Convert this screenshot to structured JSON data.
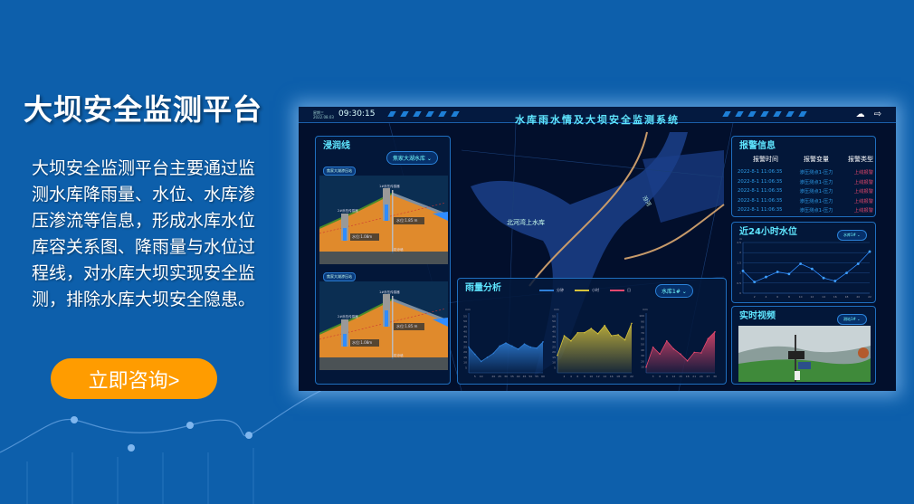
{
  "page": {
    "title": "大坝安全监测平台",
    "description": "大坝安全监测平台主要通过监测水库降雨量、水位、水库渗压渗流等信息，形成水库水位库容关系图、降雨量与水位过程线，对水库大坝实现安全监测，排除水库大坝安全隐患。",
    "cta_label": "立即咨询>",
    "cta_color": "#ff9c00",
    "background_color": "#0d5fab"
  },
  "dashboard": {
    "header": {
      "weekday": "星期三",
      "date": "2022.08.03",
      "time": "09:30:15",
      "system_title": "水库雨水情及大坝安全监测系统",
      "icons": [
        "weather-cloud-icon",
        "logout-icon"
      ]
    },
    "seepage": {
      "title": "浸润线",
      "reservoir_select": "焦家大湖水库",
      "sections": [
        {
          "tag": "焦家大湖渗压站",
          "sensor1": "1#渗压传感器",
          "sensor2": "2#渗压传感器",
          "level1": "水位:1.85 m",
          "level2": "水位:1.08m",
          "wall": "防渗墙"
        },
        {
          "tag": "焦家大湖渗压站",
          "sensor1": "1#渗压传感器",
          "sensor2": "2#渗压传感器",
          "level1": "水位:1.85 m",
          "level2": "水位:1.08m",
          "wall": "防渗墙"
        }
      ]
    },
    "map": {
      "reservoir_label": "北河湾上水库",
      "river_label": "汾河"
    },
    "alarm": {
      "title": "报警信息",
      "columns": [
        "报警时间",
        "报警变量",
        "报警类型"
      ],
      "rows": [
        [
          "2022-8-1 11:06:35",
          "渗压测点1-压力",
          "上线报警"
        ],
        [
          "2022-8-1 11:06:35",
          "渗压测点1-压力",
          "上线报警"
        ],
        [
          "2022-8-1 11:06:35",
          "渗压测点1-压力",
          "上线报警"
        ],
        [
          "2022-8-1 11:06:35",
          "渗压测点1-压力",
          "上线报警"
        ],
        [
          "2022-8-1 11:06:35",
          "渗压测点1-压力",
          "上线报警"
        ]
      ]
    },
    "water_level": {
      "title": "近24小时水位",
      "select": "水库1#"
    },
    "video": {
      "title": "实时视频",
      "select": "测站1#"
    },
    "rain": {
      "title": "雨量分析",
      "select": "水库1#",
      "legend": [
        "分钟",
        "小时",
        "日"
      ]
    }
  },
  "chart_data": [
    {
      "type": "line",
      "id": "water-level",
      "unit": "m",
      "x": [
        0,
        2,
        4,
        6,
        8,
        10,
        12,
        14,
        16,
        18,
        20,
        22
      ],
      "values": [
        1.1,
        0.55,
        0.8,
        1.05,
        0.95,
        1.45,
        1.2,
        0.75,
        0.6,
        1.0,
        1.45,
        2.05
      ],
      "xticks": [
        2,
        4,
        6,
        8,
        10,
        12,
        14,
        16,
        18,
        20,
        22
      ],
      "yticks": [
        0,
        0.5,
        1.0,
        1.5,
        2.0,
        2.5
      ],
      "ylim": [
        0,
        2.5
      ],
      "color": "#2f8cff",
      "grid": true
    },
    {
      "type": "area",
      "id": "rain-minute",
      "name": "分钟",
      "unit": "mm",
      "x": [
        0,
        5,
        10,
        15,
        20,
        25,
        30,
        35,
        40,
        45,
        50,
        55,
        60
      ],
      "values": [
        25,
        18,
        11,
        15,
        19,
        26,
        29,
        26,
        23,
        28,
        25,
        24,
        30
      ],
      "xticks": [
        5,
        10,
        20,
        25,
        30,
        35,
        40,
        45,
        50,
        55,
        60
      ],
      "yticks": [
        5,
        10,
        15,
        20,
        25,
        30,
        35,
        40,
        45,
        50,
        55
      ],
      "ylim": [
        0,
        58
      ],
      "xlim": [
        0,
        60
      ],
      "color": "#2f7fd8"
    },
    {
      "type": "area",
      "id": "rain-hour",
      "name": "小时",
      "unit": "mm",
      "x": [
        0,
        2,
        4,
        6,
        8,
        10,
        12,
        14,
        16,
        18,
        20,
        22
      ],
      "values": [
        17,
        36,
        31,
        39,
        39,
        43,
        38,
        46,
        36,
        37,
        32,
        48
      ],
      "xticks": [
        2,
        4,
        6,
        8,
        10,
        12,
        14,
        16,
        18,
        20,
        22
      ],
      "yticks": [
        5,
        10,
        15,
        20,
        25,
        30,
        35,
        40,
        45,
        50,
        55
      ],
      "ylim": [
        0,
        58
      ],
      "xlim": [
        0,
        22
      ],
      "color": "#d6c23a"
    },
    {
      "type": "area",
      "id": "rain-day",
      "name": "日",
      "unit": "mm",
      "x": [
        0,
        3,
        6,
        9,
        12,
        15,
        18,
        21,
        24,
        27,
        30
      ],
      "values": [
        10,
        45,
        33,
        56,
        42,
        33,
        21,
        36,
        35,
        60,
        72
      ],
      "xticks": [
        3,
        6,
        9,
        12,
        15,
        18,
        21,
        24,
        27,
        30
      ],
      "yticks": [
        10,
        20,
        30,
        40,
        50,
        60,
        70,
        80,
        90,
        100
      ],
      "ylim": [
        0,
        105
      ],
      "xlim": [
        0,
        30
      ],
      "color": "#e8486e"
    }
  ]
}
